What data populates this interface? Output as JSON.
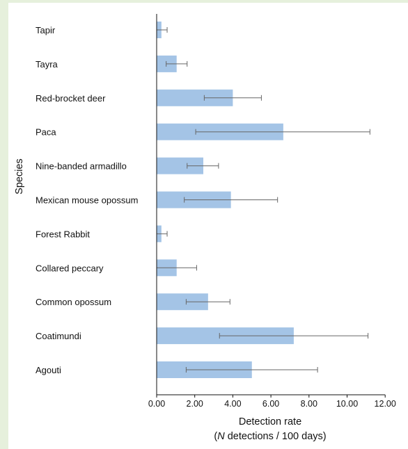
{
  "chart_data": {
    "type": "bar",
    "orientation": "horizontal",
    "ylabel": "Species",
    "xlabel_line1": "Detection rate",
    "xlabel_line2_italic": "N",
    "xlabel_line2_rest": " detections / 100 days)",
    "xlabel_line2_open": "(",
    "xlim": [
      0,
      12
    ],
    "xticks": [
      0,
      2,
      4,
      6,
      8,
      10,
      12
    ],
    "xtick_labels": [
      "0.00",
      "2.00",
      "4.00",
      "6.00",
      "8.00",
      "10.00",
      "12.00"
    ],
    "grid": false,
    "bar_color": "#a4c4e6",
    "error_color": "#666666",
    "categories": [
      "Tapir",
      "Tayra",
      "Red-brocket deer",
      "Paca",
      "Nine-banded armadillo",
      "Mexican mouse opossum",
      "Forest Rabbit",
      "Collared peccary",
      "Common opossum",
      "Coatimundi",
      "Agouti"
    ],
    "values": [
      0.25,
      1.05,
      4.0,
      6.65,
      2.45,
      3.9,
      0.25,
      1.05,
      2.7,
      7.2,
      5.0
    ],
    "err_low": [
      0.0,
      0.5,
      2.5,
      2.05,
      1.6,
      1.45,
      0.0,
      0.0,
      1.55,
      3.3,
      1.55
    ],
    "err_high": [
      0.55,
      1.6,
      5.5,
      11.2,
      3.25,
      6.35,
      0.55,
      2.1,
      3.85,
      11.1,
      8.45
    ]
  }
}
